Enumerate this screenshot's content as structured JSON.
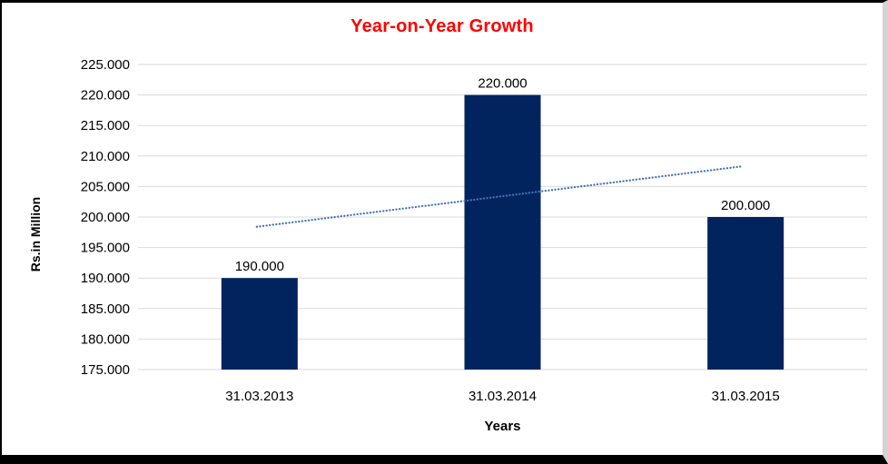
{
  "chart_data": {
    "type": "bar",
    "title": "Year-on-Year Growth",
    "categories": [
      "31.03.2013",
      "31.03.2014",
      "31.03.2015"
    ],
    "values": [
      190000,
      220000,
      200000
    ],
    "data_labels": [
      "190.000",
      "220.000",
      "200.000"
    ],
    "xlabel": "Years",
    "ylabel": "Rs.in Million",
    "ylim": [
      175000,
      225000
    ],
    "ytick_step": 5000,
    "ytick_labels": [
      "175.000",
      "180.000",
      "185.000",
      "190.000",
      "195.000",
      "200.000",
      "205.000",
      "210.000",
      "215.000",
      "220.000",
      "225.000"
    ],
    "grid": true,
    "legend": "none",
    "trendline": {
      "type": "linear",
      "style": "dotted",
      "color": "#4472b5",
      "start_value": 198400,
      "end_value": 208300
    },
    "colors": {
      "bar": "#02245e",
      "title": "#ff0000",
      "gridline": "#d9d9d9",
      "text": "#000000"
    }
  }
}
